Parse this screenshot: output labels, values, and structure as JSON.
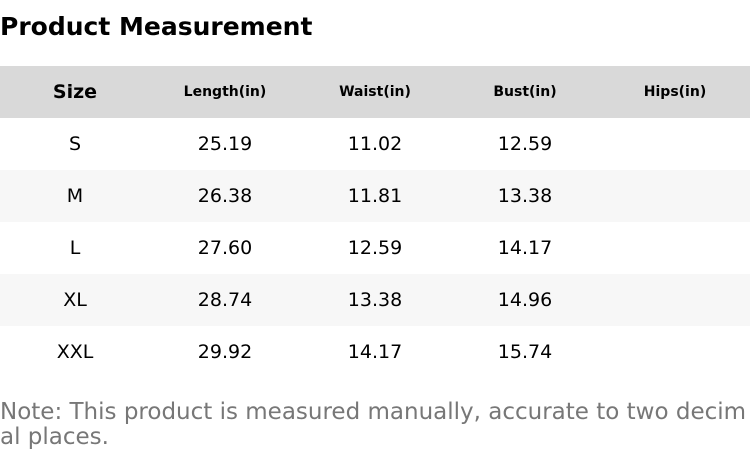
{
  "header": {
    "title": "Product Measurement"
  },
  "table": {
    "columns": [
      "Size",
      "Length(in)",
      "Waist(in)",
      "Bust(in)",
      "Hips(in)"
    ],
    "rows": [
      [
        "S",
        "25.19",
        "11.02",
        "12.59",
        null
      ],
      [
        "M",
        "26.38",
        "11.81",
        "13.38",
        null
      ],
      [
        "L",
        "27.60",
        "12.59",
        "14.17",
        null
      ],
      [
        "XL",
        "28.74",
        "13.38",
        "14.96",
        null
      ],
      [
        "XXL",
        "29.92",
        "14.17",
        "15.74",
        null
      ]
    ]
  },
  "note": "Note: This product is measured manually, accurate to two decimal places."
}
